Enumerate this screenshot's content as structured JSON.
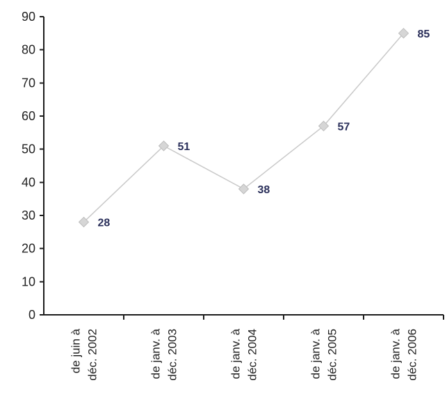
{
  "chart_data": {
    "type": "line",
    "categories": [
      [
        "de juin à",
        "déc. 2002"
      ],
      [
        "de janv. à",
        "déc. 2003"
      ],
      [
        "de janv. à",
        "déc. 2004"
      ],
      [
        "de janv. à",
        "déc. 2005"
      ],
      [
        "de janv. à",
        "déc. 2006"
      ]
    ],
    "series": [
      {
        "values": [
          28,
          51,
          38,
          57,
          85
        ]
      }
    ],
    "ylim": [
      0,
      90
    ],
    "yticks": [
      0,
      10,
      20,
      30,
      40,
      50,
      60,
      70,
      80,
      90
    ],
    "grid": false,
    "data_labels": true,
    "colors": {
      "axis": "#1c1c1c",
      "line": "#c9c9c9",
      "marker": "#d6d6d6",
      "label": "#2a2f5a"
    }
  }
}
